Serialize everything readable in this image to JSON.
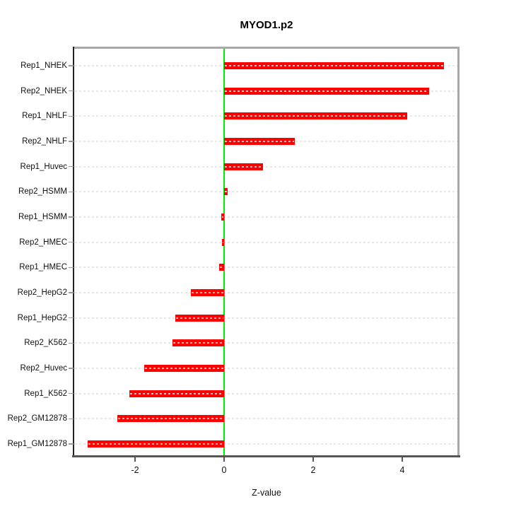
{
  "chart_data": {
    "type": "bar",
    "orientation": "horizontal",
    "title": "MYOD1.p2",
    "xlabel": "Z-value",
    "ylabel": "",
    "categories": [
      "Rep1_NHEK",
      "Rep2_NHEK",
      "Rep1_NHLF",
      "Rep2_NHLF",
      "Rep1_Huvec",
      "Rep2_HSMM",
      "Rep1_HSMM",
      "Rep2_HMEC",
      "Rep1_HMEC",
      "Rep2_HepG2",
      "Rep1_HepG2",
      "Rep2_K562",
      "Rep2_Huvec",
      "Rep1_K562",
      "Rep2_GM12878",
      "Rep1_GM12878"
    ],
    "values": [
      4.94,
      4.6,
      4.11,
      1.58,
      0.88,
      0.08,
      -0.07,
      -0.05,
      -0.11,
      -0.75,
      -1.1,
      -1.16,
      -1.79,
      -2.13,
      -2.39,
      -3.07
    ],
    "x_ticks": [
      "-2",
      "0",
      "2",
      "4"
    ],
    "x_tick_values": [
      -2,
      0,
      2,
      4
    ],
    "xlim": [
      -3.37,
      5.25
    ],
    "grid": true,
    "grid_style": "dashed",
    "legend": false,
    "colors": {
      "bar": "#ff0000",
      "zero_line": "#00ef00",
      "grid": "#e7e7e7",
      "box": "#a8a8a8",
      "axis_line": "#222222",
      "bottom_axis": "#555555"
    }
  }
}
